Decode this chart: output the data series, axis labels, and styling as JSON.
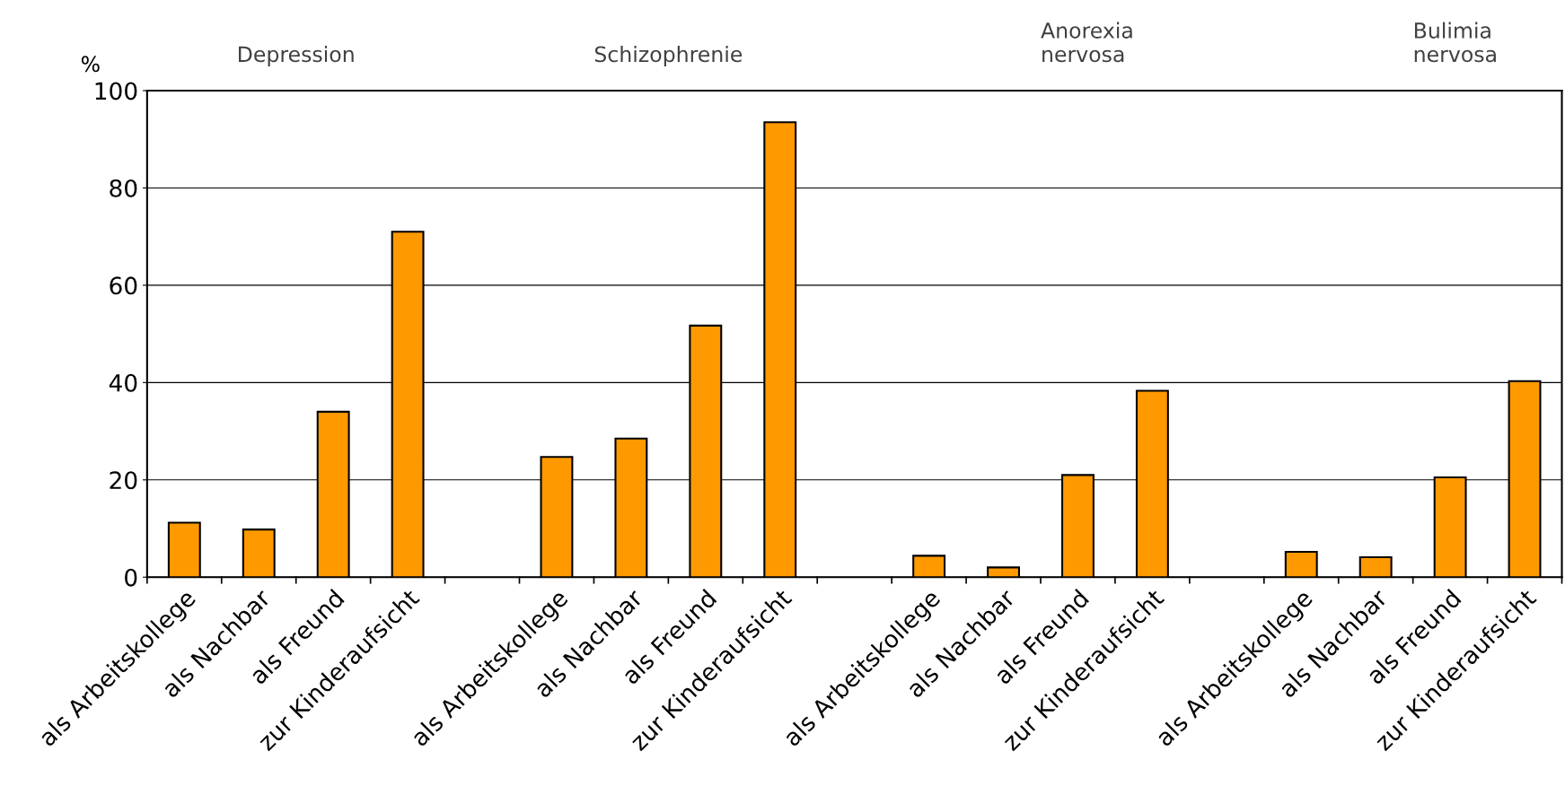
{
  "chart_data": {
    "type": "bar",
    "ylabel": "%",
    "categories": [
      "als Arbeitskollege",
      "als Nachbar",
      "als Freund",
      "zur Kinderaufsicht",
      null,
      "als Arbeitskollege",
      "als Nachbar",
      "als Freund",
      "zur Kinderaufsicht",
      null,
      "als Arbeitskollege",
      "als Nachbar",
      "als Freund",
      "zur Kinderaufsicht",
      null,
      "als Arbeitskollege",
      "als Nachbar",
      "als Freund",
      "zur Kinderaufsicht"
    ],
    "values": [
      11.2,
      9.8,
      34,
      71,
      null,
      24.7,
      28.5,
      51.7,
      93.5,
      null,
      4.4,
      2,
      21,
      38.3,
      null,
      5.2,
      4.1,
      20.5,
      40.3
    ],
    "color": "#ff9900",
    "annotations": [
      "Depression",
      "Schizophrenie",
      "Anorexia\nnervosa",
      "Bulimia\nnervosa"
    ],
    "ylim": [
      0,
      100
    ],
    "yticks": [
      0,
      20,
      40,
      60,
      80,
      100
    ],
    "grid": "y",
    "legend": false
  }
}
